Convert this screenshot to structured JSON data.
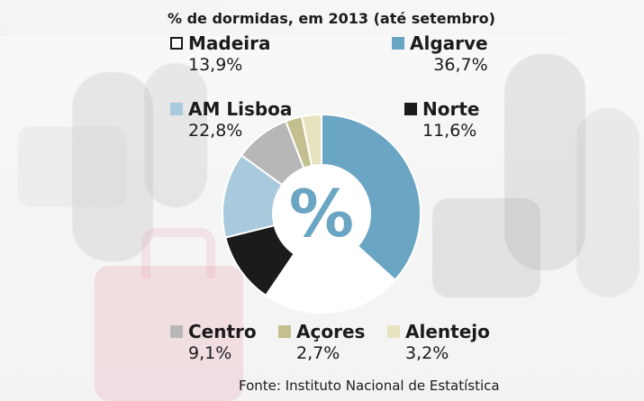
{
  "chart_data": {
    "type": "pie",
    "title": "% de dormidas, em 2013 (até setembro)",
    "center_label": "%",
    "series": [
      {
        "name": "Algarve",
        "value": 36.7,
        "label": "36,7%",
        "color": "#6aa6c3"
      },
      {
        "name": "AM Lisboa",
        "value": 22.8,
        "label": "22,8%",
        "color": "#ffffff"
      },
      {
        "name": "Norte",
        "value": 11.6,
        "label": "11,6%",
        "color": "#1b1b1b"
      },
      {
        "name": "Madeira",
        "value": 13.9,
        "label": "13,9%",
        "color": "#a9c9dc"
      },
      {
        "name": "Centro",
        "value": 9.1,
        "label": "9,1%",
        "color": "#b7b7b7"
      },
      {
        "name": "Açores",
        "value": 2.7,
        "label": "2,7%",
        "color": "#c3bf8e"
      },
      {
        "name": "Alentejo",
        "value": 3.2,
        "label": "3,2%",
        "color": "#e7e3bf"
      }
    ],
    "legend_placement": "around"
  },
  "source": "Fonte: Instituto Nacional de Estatística"
}
